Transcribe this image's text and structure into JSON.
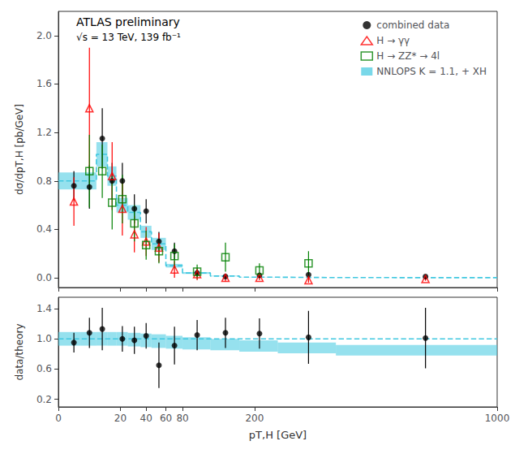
{
  "chart_data": [
    {
      "type": "scatter",
      "y_label": "dσ/dpT,H [pb/GeV]",
      "annotations": [
        "ATLAS preliminary",
        "√s = 13 TeV, 139 fb⁻¹"
      ],
      "xlim": [
        0,
        1000
      ],
      "xticks": [
        0,
        20,
        40,
        60,
        80,
        200,
        1000
      ],
      "ylim": [
        -0.08,
        2.2
      ],
      "yticks": [
        {
          "value": 0,
          "label": "0.0"
        },
        0.4,
        0.8,
        1.2,
        1.6,
        {
          "value": 2,
          "label": "2.0"
        }
      ],
      "grid": false,
      "legend": "upper right",
      "tick_labels": "y",
      "series": [
        {
          "name": "combined data",
          "type": "errorbar",
          "color": "black",
          "marker": "circle",
          "x": [
            1.25,
            5.0,
            10.0,
            15.0,
            21.25,
            30.0,
            40.0,
            52.5,
            70.0,
            100.0,
            145.0,
            210.0,
            325.0,
            700.0
          ],
          "values": [
            0.76,
            0.75,
            1.15,
            0.8,
            0.8,
            0.57,
            0.55,
            0.3,
            0.22,
            0.04,
            0.01,
            0.02,
            0.025,
            0.01
          ],
          "errors": [
            0.12,
            0.18,
            0.25,
            0.15,
            0.15,
            0.12,
            0.1,
            0.08,
            0.07,
            0.03,
            0.01,
            0.015,
            0.02,
            0.01
          ]
        },
        {
          "name": "H → γγ",
          "type": "errorbar",
          "color": "red",
          "marker": "open_triangle",
          "x": [
            1.25,
            5.0,
            15.0,
            21.25,
            30.0,
            40.0,
            52.5,
            70.0,
            100.0,
            145.0,
            210.0,
            325.0,
            700.0
          ],
          "values": [
            0.63,
            1.4,
            0.84,
            0.57,
            0.36,
            0.3,
            0.25,
            0.07,
            0.03,
            0.0,
            0.0,
            -0.02,
            -0.01
          ],
          "errors": [
            0.2,
            0.5,
            0.28,
            0.22,
            0.15,
            0.12,
            0.12,
            0.07,
            0.05,
            0.03,
            0.02,
            0.02,
            0.015
          ]
        },
        {
          "name": "H → ZZ* → 4l",
          "type": "errorbar",
          "color": "green",
          "marker": "open_square",
          "x": [
            5.0,
            10.0,
            15.0,
            21.25,
            30.0,
            40.0,
            52.5,
            70.0,
            100.0,
            145.0,
            210.0,
            325.0
          ],
          "values": [
            0.88,
            0.88,
            0.62,
            0.65,
            0.45,
            0.27,
            0.22,
            0.18,
            0.05,
            0.17,
            0.06,
            0.12
          ],
          "errors": [
            0.3,
            0.22,
            0.22,
            0.2,
            0.15,
            0.12,
            0.1,
            0.1,
            0.06,
            0.12,
            0.06,
            0.1
          ]
        },
        {
          "name": "NNLOPS K = 1.1, + XH",
          "type": "band",
          "color": "#40c8e0",
          "line_style": "dashed",
          "bins": [
            0,
            2.5,
            7.5,
            12.5,
            17.5,
            25,
            35,
            45,
            60,
            80,
            120,
            170,
            250,
            400,
            1000
          ],
          "values": [
            0.8,
            0.8,
            1.02,
            0.84,
            0.6,
            0.54,
            0.38,
            0.28,
            0.1,
            0.04,
            0.015,
            0.005,
            0.002,
            0.001
          ],
          "lower": [
            0.73,
            0.73,
            0.92,
            0.76,
            0.54,
            0.48,
            0.33,
            0.23,
            0.085,
            0.033,
            0.012,
            0.004,
            0.0016,
            0.0008
          ],
          "upper": [
            0.87,
            0.87,
            1.12,
            0.92,
            0.66,
            0.6,
            0.43,
            0.33,
            0.115,
            0.047,
            0.018,
            0.006,
            0.0024,
            0.0012
          ]
        }
      ]
    },
    {
      "type": "scatter",
      "x_label": "pT,H [GeV]",
      "y_label": "data/theory",
      "xlim": [
        0,
        1000
      ],
      "xticks": [
        0,
        20,
        40,
        60,
        80,
        200,
        1000
      ],
      "ylim": [
        0.1,
        1.55
      ],
      "yticks": [
        0.2,
        0.6,
        {
          "value": 1,
          "label": "1.0"
        },
        1.4
      ],
      "grid": false,
      "hline": 1.0,
      "series": [
        {
          "type": "band",
          "color": "#40c8e0",
          "line_style": "dashed",
          "bins": [
            0,
            2.5,
            7.5,
            12.5,
            17.5,
            25,
            35,
            45,
            60,
            80,
            120,
            170,
            250,
            400,
            1000
          ],
          "lower": [
            0.91,
            0.91,
            0.91,
            0.91,
            0.91,
            0.9,
            0.89,
            0.88,
            0.87,
            0.86,
            0.85,
            0.83,
            0.81,
            0.78
          ],
          "upper": [
            1.09,
            1.09,
            1.09,
            1.09,
            1.09,
            1.08,
            1.07,
            1.06,
            1.04,
            1.02,
            1.0,
            0.98,
            0.95,
            0.92
          ]
        },
        {
          "type": "errorbar",
          "color": "black",
          "marker": "circle",
          "x": [
            1.25,
            5.0,
            10.0,
            21.25,
            30.0,
            40.0,
            52.5,
            70.0,
            100.0,
            145.0,
            210.0,
            325.0,
            700.0
          ],
          "values": [
            0.95,
            1.08,
            1.13,
            1.0,
            0.98,
            1.04,
            0.65,
            0.91,
            1.05,
            1.08,
            1.07,
            1.02,
            1.01
          ],
          "errors_low": [
            0.13,
            0.2,
            0.28,
            0.17,
            0.18,
            0.17,
            0.3,
            0.25,
            0.2,
            0.2,
            0.2,
            0.35,
            0.4
          ],
          "errors_high": [
            0.13,
            0.2,
            0.28,
            0.17,
            0.18,
            0.17,
            0.3,
            0.25,
            0.2,
            0.2,
            0.2,
            0.35,
            0.4
          ]
        }
      ]
    }
  ]
}
